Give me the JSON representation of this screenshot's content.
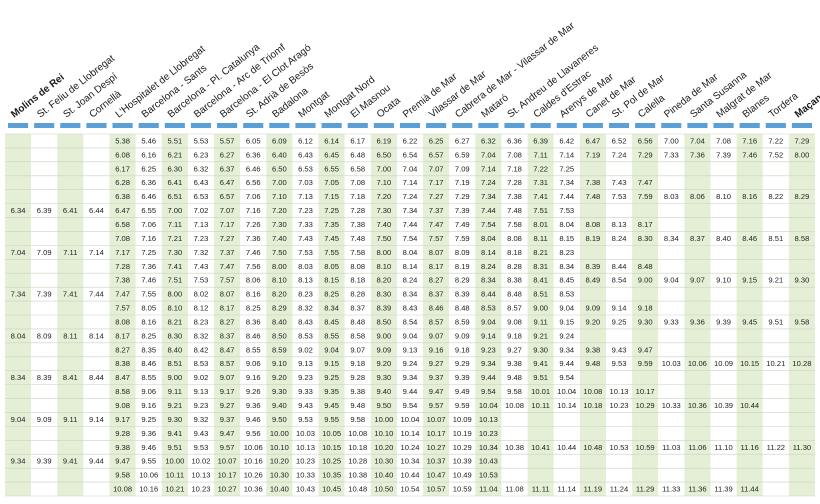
{
  "table": {
    "stations": [
      "Molins de Rei",
      "St. Feliu de Llobregat",
      "St. Joan Despí",
      "Cornellà",
      "L'Hospitalet de Llobregat",
      "Barcelona - Sants",
      "Barcelona - Pl. Catalunya",
      "Barcelona - Arc de Triomf",
      "Barcelona - El Clot Aragó",
      "St. Adrià de Besòs",
      "Badalona",
      "Montgat",
      "Montgat Nord",
      "El Masnou",
      "Ocata",
      "Premià de Mar",
      "Vilassar de Mar",
      "Cabrera de Mar - Vilassar de Mar",
      "Mataró",
      "St. Andreu de Llavaneres",
      "Caldes d'Estrac",
      "Arenys de Mar",
      "Canet de Mar",
      "St. Pol de Mar",
      "Calella",
      "Pineda de Mar",
      "Santa Susanna",
      "Malgrat de Mar",
      "Blanes",
      "Tordera",
      "Maçanet Massanes"
    ],
    "rows": [
      [
        null,
        null,
        null,
        null,
        "5.38",
        "5.46",
        "5.51",
        "5.53",
        "5.57",
        "6.05",
        "6.09",
        "6.12",
        "6.14",
        "6.17",
        "6.19",
        "6.22",
        "6.25",
        "6.27",
        "6.32",
        "6.36",
        "6.39",
        "6.42",
        "6.47",
        "6.52",
        "6.56",
        "7.00",
        "7.04",
        "7.08",
        "7.16",
        "7.22",
        "7.29"
      ],
      [
        null,
        null,
        null,
        null,
        "6.08",
        "6.16",
        "6.21",
        "6.23",
        "6.27",
        "6.36",
        "6.40",
        "6.43",
        "6.45",
        "6.48",
        "6.50",
        "6.54",
        "6.57",
        "6.59",
        "7.04",
        "7.08",
        "7.11",
        "7.14",
        "7.19",
        "7.24",
        "7.29",
        "7.33",
        "7.36",
        "7.39",
        "7.46",
        "7.52",
        "8.00"
      ],
      [
        null,
        null,
        null,
        null,
        "6.17",
        "6.25",
        "6.30",
        "6.32",
        "6.37",
        "6.46",
        "6.50",
        "6.53",
        "6.55",
        "6.58",
        "7.00",
        "7.04",
        "7.07",
        "7.09",
        "7.14",
        "7.18",
        "7.22",
        "7.25",
        null,
        null,
        null,
        null,
        null,
        null,
        null,
        null,
        null
      ],
      [
        null,
        null,
        null,
        null,
        "6.28",
        "6.36",
        "6.41",
        "6.43",
        "6.47",
        "6.56",
        "7.00",
        "7.03",
        "7.05",
        "7.08",
        "7.10",
        "7.14",
        "7.17",
        "7.19",
        "7.24",
        "7.28",
        "7.31",
        "7.34",
        "7.38",
        "7.43",
        "7.47",
        null,
        null,
        null,
        null,
        null,
        null
      ],
      [
        null,
        null,
        null,
        null,
        "6.38",
        "6.46",
        "6.51",
        "6.53",
        "6.57",
        "7.06",
        "7.10",
        "7.13",
        "7.15",
        "7.18",
        "7.20",
        "7.24",
        "7.27",
        "7.29",
        "7.34",
        "7.38",
        "7.41",
        "7.44",
        "7.48",
        "7.53",
        "7.59",
        "8.03",
        "8.06",
        "8.10",
        "8.16",
        "8.22",
        "8.29"
      ],
      [
        "6.34",
        "6.39",
        "6.41",
        "6.44",
        "6.47",
        "6.55",
        "7.00",
        "7.02",
        "7.07",
        "7.16",
        "7.20",
        "7.23",
        "7.25",
        "7.28",
        "7.30",
        "7.34",
        "7.37",
        "7.39",
        "7.44",
        "7.48",
        "7.51",
        "7.53",
        null,
        null,
        null,
        null,
        null,
        null,
        null,
        null,
        null
      ],
      [
        null,
        null,
        null,
        null,
        "6.58",
        "7.06",
        "7.11",
        "7.13",
        "7.17",
        "7.26",
        "7.30",
        "7.33",
        "7.35",
        "7.38",
        "7.40",
        "7.44",
        "7.47",
        "7.49",
        "7.54",
        "7.58",
        "8.01",
        "8.04",
        "8.08",
        "8.13",
        "8.17",
        null,
        null,
        null,
        null,
        null,
        null
      ],
      [
        null,
        null,
        null,
        null,
        "7.08",
        "7.16",
        "7.21",
        "7.23",
        "7.27",
        "7.36",
        "7.40",
        "7.43",
        "7.45",
        "7.48",
        "7.50",
        "7.54",
        "7.57",
        "7.59",
        "8.04",
        "8.08",
        "8.11",
        "8.15",
        "8.19",
        "8.24",
        "8.30",
        "8.34",
        "8.37",
        "8.40",
        "8.46",
        "8.51",
        "8.58"
      ],
      [
        "7.04",
        "7.09",
        "7.11",
        "7.14",
        "7.17",
        "7.25",
        "7.30",
        "7.32",
        "7.37",
        "7.46",
        "7.50",
        "7.53",
        "7.55",
        "7.58",
        "8.00",
        "8.04",
        "8.07",
        "8.09",
        "8.14",
        "8.18",
        "8.21",
        "8.23",
        null,
        null,
        null,
        null,
        null,
        null,
        null,
        null,
        null
      ],
      [
        null,
        null,
        null,
        null,
        "7.28",
        "7.36",
        "7.41",
        "7.43",
        "7.47",
        "7.56",
        "8.00",
        "8.03",
        "8.05",
        "8.08",
        "8.10",
        "8.14",
        "8.17",
        "8.19",
        "8.24",
        "8.28",
        "8.31",
        "8.34",
        "8.39",
        "8.44",
        "8.48",
        null,
        null,
        null,
        null,
        null,
        null
      ],
      [
        null,
        null,
        null,
        null,
        "7.38",
        "7.46",
        "7.51",
        "7.53",
        "7.57",
        "8.06",
        "8.10",
        "8.13",
        "8.15",
        "8.18",
        "8.20",
        "8.24",
        "8.27",
        "8.29",
        "8.34",
        "8.38",
        "8.41",
        "8.45",
        "8.49",
        "8.54",
        "9.00",
        "9.04",
        "9.07",
        "9.10",
        "9.15",
        "9.21",
        "9.30"
      ],
      [
        "7.34",
        "7.39",
        "7.41",
        "7.44",
        "7.47",
        "7.55",
        "8.00",
        "8.02",
        "8.07",
        "8.16",
        "8.20",
        "8.23",
        "8.25",
        "8.28",
        "8.30",
        "8.34",
        "8.37",
        "8.39",
        "8.44",
        "8.48",
        "8.51",
        "8.53",
        null,
        null,
        null,
        null,
        null,
        null,
        null,
        null,
        null
      ],
      [
        null,
        null,
        null,
        null,
        "7.57",
        "8.05",
        "8.10",
        "8.12",
        "8.17",
        "8.25",
        "8.29",
        "8.32",
        "8.34",
        "8.37",
        "8.39",
        "8.43",
        "8.46",
        "8.48",
        "8.53",
        "8.57",
        "9.00",
        "9.04",
        "9.09",
        "9.14",
        "9.18",
        null,
        null,
        null,
        null,
        null,
        null
      ],
      [
        null,
        null,
        null,
        null,
        "8.08",
        "8.16",
        "8.21",
        "8.23",
        "8.27",
        "8.36",
        "8.40",
        "8.43",
        "8.45",
        "8.48",
        "8.50",
        "8.54",
        "8.57",
        "8.59",
        "9.04",
        "9.08",
        "9.11",
        "9.15",
        "9.20",
        "9.25",
        "9.30",
        "9.33",
        "9.36",
        "9.39",
        "9.45",
        "9.51",
        "9.58"
      ],
      [
        "8.04",
        "8.09",
        "8.11",
        "8.14",
        "8.17",
        "8.25",
        "8.30",
        "8.32",
        "8.37",
        "8.46",
        "8.50",
        "8.53",
        "8.55",
        "8.58",
        "9.00",
        "9.04",
        "9.07",
        "9.09",
        "9.14",
        "9.18",
        "9.21",
        "9.24",
        null,
        null,
        null,
        null,
        null,
        null,
        null,
        null,
        null
      ],
      [
        null,
        null,
        null,
        null,
        "8.27",
        "8.35",
        "8.40",
        "8.42",
        "8.47",
        "8.55",
        "8.59",
        "9.02",
        "9.04",
        "9.07",
        "9.09",
        "9.13",
        "9.16",
        "9.18",
        "9.23",
        "9.27",
        "9.30",
        "9.34",
        "9.38",
        "9.43",
        "9.47",
        null,
        null,
        null,
        null,
        null,
        null
      ],
      [
        null,
        null,
        null,
        null,
        "8.38",
        "8.46",
        "8.51",
        "8.53",
        "8.57",
        "9.06",
        "9.10",
        "9.13",
        "9.15",
        "9.18",
        "9.20",
        "9.24",
        "9.27",
        "9.29",
        "9.34",
        "9.38",
        "9.41",
        "9.44",
        "9.48",
        "9.53",
        "9.59",
        "10.03",
        "10.06",
        "10.09",
        "10.15",
        "10.21",
        "10.28"
      ],
      [
        "8.34",
        "8.39",
        "8.41",
        "8.44",
        "8.47",
        "8.55",
        "9.00",
        "9.02",
        "9.07",
        "9.16",
        "9.20",
        "9.23",
        "9.25",
        "9.28",
        "9.30",
        "9.34",
        "9.37",
        "9.39",
        "9.44",
        "9.48",
        "9.51",
        "9.54",
        null,
        null,
        null,
        null,
        null,
        null,
        null,
        null,
        null
      ],
      [
        null,
        null,
        null,
        null,
        "8.58",
        "9.06",
        "9.11",
        "9.13",
        "9.17",
        "9.26",
        "9.30",
        "9.33",
        "9.35",
        "9.38",
        "9.40",
        "9.44",
        "9.47",
        "9.49",
        "9.54",
        "9.58",
        "10.01",
        "10.04",
        "10.08",
        "10.13",
        "10.17",
        null,
        null,
        null,
        null,
        null,
        null
      ],
      [
        null,
        null,
        null,
        null,
        "9.08",
        "9.16",
        "9.21",
        "9.23",
        "9.27",
        "9.36",
        "9.40",
        "9.43",
        "9.45",
        "9.48",
        "9.50",
        "9.54",
        "9.57",
        "9.59",
        "10.04",
        "10.08",
        "10.11",
        "10.14",
        "10.18",
        "10.23",
        "10.29",
        "10.33",
        "10.36",
        "10.39",
        "10.44",
        null,
        null
      ],
      [
        "9.04",
        "9.09",
        "9.11",
        "9.14",
        "9.17",
        "9.25",
        "9.30",
        "9.32",
        "9.37",
        "9.46",
        "9.50",
        "9.53",
        "9.55",
        "9.58",
        "10.00",
        "10.04",
        "10.07",
        "10.09",
        "10.13",
        null,
        null,
        null,
        null,
        null,
        null,
        null,
        null,
        null,
        null,
        null,
        null
      ],
      [
        null,
        null,
        null,
        null,
        "9.28",
        "9.36",
        "9.41",
        "9.43",
        "9.47",
        "9.56",
        "10.00",
        "10.03",
        "10.05",
        "10.08",
        "10.10",
        "10.14",
        "10.17",
        "10.19",
        "10.23",
        null,
        null,
        null,
        null,
        null,
        null,
        null,
        null,
        null,
        null,
        null,
        null
      ],
      [
        null,
        null,
        null,
        null,
        "9.38",
        "9.46",
        "9.51",
        "9.53",
        "9.57",
        "10.06",
        "10.10",
        "10.13",
        "10.15",
        "10.18",
        "10.20",
        "10.24",
        "10.27",
        "10.29",
        "10.34",
        "10.38",
        "10.41",
        "10.44",
        "10.48",
        "10.53",
        "10.59",
        "11.03",
        "11.06",
        "11.10",
        "11.16",
        "11.22",
        "11.30"
      ],
      [
        "9.34",
        "9.39",
        "9.41",
        "9.44",
        "9.47",
        "9.55",
        "10.00",
        "10.02",
        "10.07",
        "10.16",
        "10.20",
        "10.23",
        "10.25",
        "10.28",
        "10.30",
        "10.34",
        "10.37",
        "10.39",
        "10.43",
        null,
        null,
        null,
        null,
        null,
        null,
        null,
        null,
        null,
        null,
        null,
        null
      ],
      [
        null,
        null,
        null,
        null,
        "9.58",
        "10.06",
        "10.11",
        "10.13",
        "10.17",
        "10.26",
        "10.30",
        "10.33",
        "10.35",
        "10.38",
        "10.40",
        "10.44",
        "10.47",
        "10.49",
        "10.53",
        null,
        null,
        null,
        null,
        null,
        null,
        null,
        null,
        null,
        null,
        null,
        null
      ],
      [
        null,
        null,
        null,
        null,
        "10.08",
        "10.16",
        "10.21",
        "10.23",
        "10.27",
        "10.36",
        "10.40",
        "10.43",
        "10.45",
        "10.48",
        "10.50",
        "10.54",
        "10.57",
        "10.59",
        "11.04",
        "11.08",
        "11.11",
        "11.14",
        "11.19",
        "11.24",
        "11.29",
        "11.33",
        "11.36",
        "11.39",
        "11.44",
        null,
        null
      ]
    ]
  }
}
